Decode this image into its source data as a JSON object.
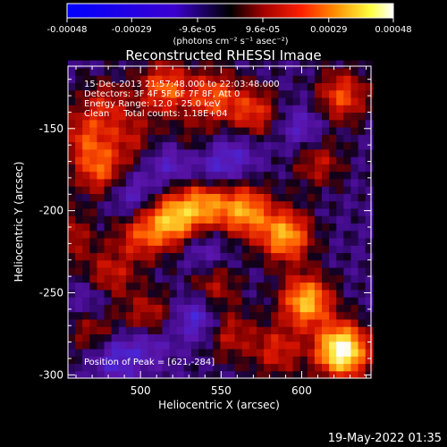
{
  "figure": {
    "title": "Reconstructed RHESSI Image",
    "info_lines": [
      "15-Dec-2013 21:57:48.000 to 22:03:48.000",
      "Detectors: 3F 4F 5F 6F 7F 8F, Att 0",
      "Energy Range: 12.0 - 25.0 keV",
      "Clean     Total counts: 1.18E+04"
    ],
    "peak_label": "Position of Peak = [621,-284]",
    "timestamp": "19-May-2022 01:35"
  },
  "colorbar": {
    "colormap": "blue-black-red-yellow-white",
    "ticks": [
      "-0.00048",
      "-0.00029",
      "-9.6e-05",
      "9.6e-05",
      "0.00029",
      "0.00048"
    ],
    "tick_values": [
      -0.00048,
      -0.00029,
      -9.6e-05,
      9.6e-05,
      0.00029,
      0.00048
    ],
    "range": [
      -0.00048,
      0.00048
    ],
    "unit_label": "(photons cm⁻² s⁻¹ asec⁻²)"
  },
  "chart_data": {
    "type": "heatmap",
    "title": "Reconstructed RHESSI Image",
    "xlabel": "Heliocentric X (arcsec)",
    "ylabel": "Heliocentric Y (arcsec)",
    "xlim": [
      455,
      643
    ],
    "ylim": [
      -302,
      -112
    ],
    "xticks": [
      500,
      550,
      600
    ],
    "yticks": [
      -150,
      -200,
      -250,
      -300
    ],
    "xtick_labels": [
      "500",
      "550",
      "600"
    ],
    "ytick_labels": [
      "-150",
      "-200",
      "-250",
      "-300"
    ],
    "peak": [
      621,
      -284
    ],
    "sources": [
      {
        "x": 625,
        "y": -285,
        "peak": 1.0
      },
      {
        "x": 603,
        "y": -255,
        "peak": 0.7
      },
      {
        "x": 590,
        "y": -215,
        "peak": 0.65
      },
      {
        "x": 565,
        "y": -200,
        "peak": 0.6
      },
      {
        "x": 540,
        "y": -195,
        "peak": 0.55
      },
      {
        "x": 520,
        "y": -205,
        "peak": 0.65
      },
      {
        "x": 500,
        "y": -215,
        "peak": 0.4
      },
      {
        "x": 480,
        "y": -240,
        "peak": 0.35
      },
      {
        "x": 470,
        "y": -270,
        "peak": 0.3
      },
      {
        "x": 505,
        "y": -265,
        "peak": 0.35
      },
      {
        "x": 545,
        "y": -245,
        "peak": 0.3
      },
      {
        "x": 555,
        "y": -275,
        "peak": 0.3
      },
      {
        "x": 585,
        "y": -285,
        "peak": 0.35
      },
      {
        "x": 475,
        "y": -175,
        "peak": 0.45
      },
      {
        "x": 465,
        "y": -155,
        "peak": 0.35
      },
      {
        "x": 478,
        "y": -135,
        "peak": 0.3
      },
      {
        "x": 515,
        "y": -125,
        "peak": 0.5
      },
      {
        "x": 545,
        "y": -130,
        "peak": 0.45
      },
      {
        "x": 570,
        "y": -140,
        "peak": 0.4
      },
      {
        "x": 625,
        "y": -130,
        "peak": 0.45
      },
      {
        "x": 610,
        "y": -170,
        "peak": 0.3
      },
      {
        "x": 495,
        "y": -155,
        "peak": 0.25
      },
      {
        "x": 530,
        "y": -160,
        "peak": 0.2
      },
      {
        "x": 455,
        "y": -215,
        "peak": 0.3
      }
    ],
    "lows": [
      {
        "x": 485,
        "y": -290,
        "depth": 0.6
      },
      {
        "x": 505,
        "y": -280,
        "depth": 0.55
      },
      {
        "x": 535,
        "y": -265,
        "depth": 0.7
      },
      {
        "x": 520,
        "y": -170,
        "depth": 0.6
      },
      {
        "x": 545,
        "y": -175,
        "depth": 0.55
      },
      {
        "x": 495,
        "y": -190,
        "depth": 0.5
      },
      {
        "x": 560,
        "y": -165,
        "depth": 0.4
      },
      {
        "x": 540,
        "y": -225,
        "depth": 0.45
      },
      {
        "x": 600,
        "y": -150,
        "depth": 0.5
      },
      {
        "x": 470,
        "y": -255,
        "depth": 0.55
      }
    ]
  }
}
